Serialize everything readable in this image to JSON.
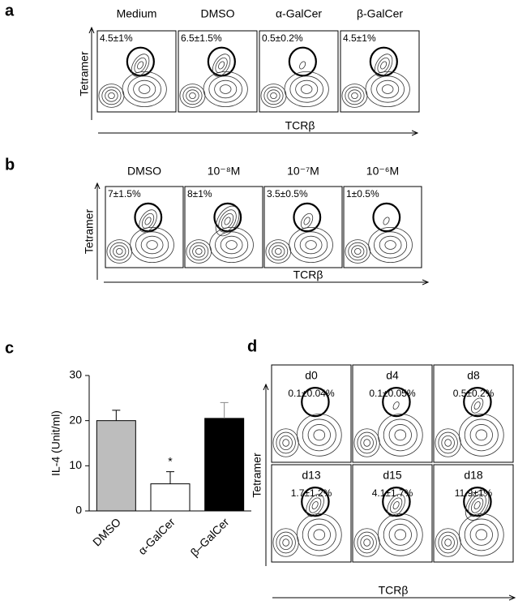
{
  "panels": {
    "a": {
      "label": "a",
      "y_label": "Tetramer",
      "x_label": "TCRβ",
      "plots": [
        {
          "title": "Medium",
          "percent": "4.5±1%"
        },
        {
          "title": "DMSO",
          "percent": "6.5±1.5%"
        },
        {
          "title": "α-GalCer",
          "percent": "0.5±0.2%"
        },
        {
          "title": "β-GalCer",
          "percent": "4.5±1%"
        }
      ]
    },
    "b": {
      "label": "b",
      "y_label": "Tetramer",
      "x_label": "TCRβ",
      "plots": [
        {
          "title": "DMSO",
          "percent": "7±1.5%"
        },
        {
          "title": "10⁻⁸M",
          "percent": "8±1%"
        },
        {
          "title": "10⁻⁷M",
          "percent": "3.5±0.5%"
        },
        {
          "title": "10⁻⁶M",
          "percent": "1±0.5%"
        }
      ]
    },
    "c": {
      "label": "c"
    },
    "d": {
      "label": "d",
      "y_label": "Tetramer",
      "x_label": "TCRβ",
      "plots": [
        {
          "title": "d0",
          "percent": "0.1±0.04%"
        },
        {
          "title": "d4",
          "percent": "0.1±0.05%"
        },
        {
          "title": "d8",
          "percent": "0.5±0.2%"
        },
        {
          "title": "d13",
          "percent": "1.7±1.2%"
        },
        {
          "title": "d15",
          "percent": "4.1±1.7%"
        },
        {
          "title": "d18",
          "percent": "11.9±1%"
        }
      ]
    }
  },
  "chart_data": {
    "type": "bar",
    "y_label": "IL-4 (Unit/ml)",
    "categories": [
      "DMSO",
      "α-GalCer",
      "β–GalCer"
    ],
    "values": [
      20,
      6,
      20.5
    ],
    "errors": [
      2.3,
      2.7,
      3.5
    ],
    "colors": [
      "#bdbdbd",
      "#ffffff",
      "#000000"
    ],
    "annotation": "*",
    "ylim": [
      0,
      30
    ],
    "yticks": [
      0,
      10,
      20,
      30
    ]
  }
}
